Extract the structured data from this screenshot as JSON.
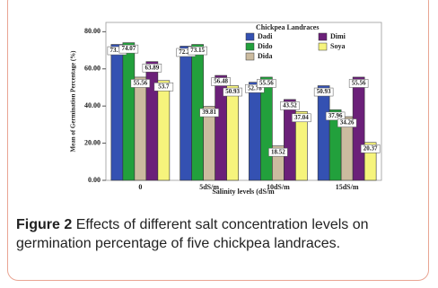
{
  "chart_data": {
    "type": "bar",
    "legend_title": "Chickpea Landraces",
    "y_label": "Mean of Germination Percentage (%)",
    "x_label": "Salinity levels (dS/m",
    "categories": [
      "0",
      "5dS/m",
      "10dS/m",
      "15dS/m"
    ],
    "series": [
      {
        "name": "Dadi",
        "color": "#3451b2",
        "values": [
          73.15,
          72.22,
          52.78,
          50.93
        ]
      },
      {
        "name": "Dido",
        "color": "#22a03c",
        "values": [
          74.07,
          73.15,
          55.56,
          37.96
        ]
      },
      {
        "name": "Dida",
        "color": "#cbbb9f",
        "values": [
          55.56,
          39.81,
          18.52,
          34.26
        ]
      },
      {
        "name": "Dimi",
        "color": "#6b2079",
        "values": [
          63.89,
          56.48,
          43.52,
          55.56
        ]
      },
      {
        "name": "Soya",
        "color": "#f6f47c",
        "values": [
          53.7,
          50.93,
          37.04,
          20.37
        ]
      }
    ],
    "ylim": [
      0,
      85
    ],
    "yticks": [
      {
        "value": 0,
        "label": "0.00"
      },
      {
        "value": 20,
        "label": "20.00"
      },
      {
        "value": 40,
        "label": "40.00"
      },
      {
        "value": 60,
        "label": "60.00"
      },
      {
        "value": 80,
        "label": "80.00"
      }
    ]
  },
  "caption": {
    "label": "Figure 2",
    "text": "Effects of different salt concentration levels on germination percentage of five chickpea landraces."
  }
}
